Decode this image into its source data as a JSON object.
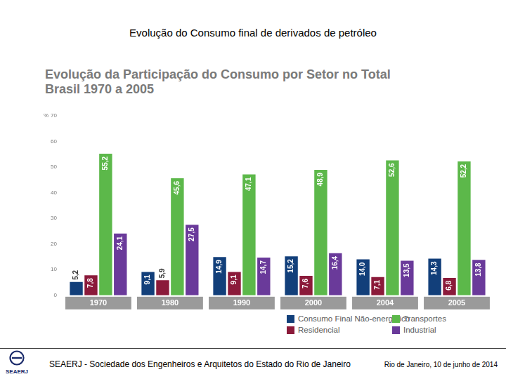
{
  "page": {
    "title": "Evolução do Consumo final de derivados de petróleo",
    "footer": {
      "logo": "SEAERJ",
      "organization": "SEAERJ - Sociedade dos Engenheiros e Arquitetos do Estado do Rio de Janeiro",
      "date": "Rio de Janeiro, 10 de junho de 2014"
    }
  },
  "chart_data": {
    "type": "bar",
    "title": "Evolução da Participação do Consumo por Setor no Total",
    "subtitle": "Brasil 1970 a 2005",
    "ylabel": "%",
    "categories": [
      "1970",
      "1980",
      "1990",
      "2000",
      "2004",
      "2005"
    ],
    "series": [
      {
        "name": "Consumo Final Não-energético",
        "color": "#123f7a",
        "values": [
          5.2,
          9.1,
          14.9,
          15.2,
          14.0,
          14.3
        ],
        "value_labels": [
          "5,2",
          "9,1",
          "14,9",
          "15,2",
          "14,0",
          "14,3"
        ]
      },
      {
        "name": "Residencial",
        "color": "#8b1a3a",
        "values": [
          7.8,
          5.9,
          9.1,
          7.6,
          7.1,
          6.8
        ],
        "value_labels": [
          "7,8",
          "5,9",
          "9,1",
          "7,6",
          "7,1",
          "6,8"
        ]
      },
      {
        "name": "Transportes",
        "color": "#5cb84a",
        "values": [
          55.2,
          45.6,
          47.1,
          48.9,
          52.6,
          52.2
        ],
        "value_labels": [
          "55,2",
          "45,6",
          "47,1",
          "48,9",
          "52,6",
          "52,2"
        ]
      },
      {
        "name": "Industrial",
        "color": "#6a3a9a",
        "values": [
          24.1,
          27.5,
          14.7,
          16.4,
          13.5,
          13.8
        ],
        "value_labels": [
          "24,1",
          "27,5",
          "14,7",
          "16,4",
          "13,5",
          "13,8"
        ]
      }
    ],
    "ylim": [
      0,
      70
    ],
    "yticks": [
      0,
      10,
      20,
      30,
      40,
      50,
      60,
      70
    ],
    "grid": false,
    "legend": "lower right",
    "data_labels": true
  }
}
